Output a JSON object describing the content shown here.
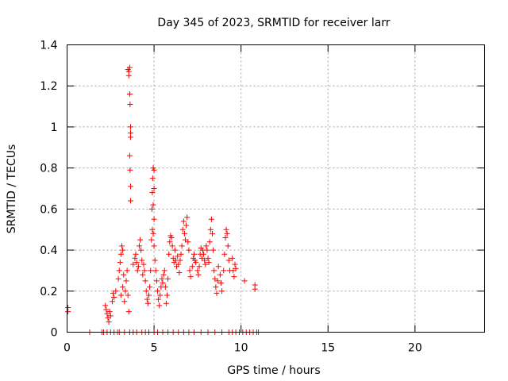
{
  "chart_data": {
    "type": "scatter",
    "title": "Day 345 of 2023, SRMTID for receiver larr",
    "xlabel": "GPS time / hours",
    "ylabel": "SRMTID / TECUs",
    "xlim": [
      0,
      24
    ],
    "ylim": [
      0,
      1.4
    ],
    "xticks": [
      0,
      5,
      10,
      15,
      20
    ],
    "xtick_labels": [
      "0",
      "5",
      "10",
      "15",
      "20"
    ],
    "yticks": [
      0,
      0.2,
      0.4,
      0.6,
      0.8,
      1.0,
      1.2,
      1.4
    ],
    "ytick_labels": [
      "0",
      "0.2",
      "0.4",
      "0.6",
      "0.8",
      "1",
      "1.2",
      "1.4"
    ],
    "grid": true,
    "marker": "+",
    "color": "#ff0000",
    "series": [
      {
        "name": "larr",
        "points": [
          [
            0.05,
            0.12
          ],
          [
            0.05,
            0.1
          ],
          [
            2.2,
            0.13
          ],
          [
            2.25,
            0.11
          ],
          [
            2.3,
            0.09
          ],
          [
            2.35,
            0.07
          ],
          [
            2.4,
            0.05
          ],
          [
            2.45,
            0.1
          ],
          [
            2.5,
            0.08
          ],
          [
            2.6,
            0.15
          ],
          [
            2.65,
            0.19
          ],
          [
            2.7,
            0.17
          ],
          [
            2.8,
            0.2
          ],
          [
            2.95,
            0.26
          ],
          [
            3.0,
            0.3
          ],
          [
            3.05,
            0.34
          ],
          [
            3.1,
            0.38
          ],
          [
            3.15,
            0.42
          ],
          [
            3.2,
            0.4
          ],
          [
            3.1,
            0.18
          ],
          [
            3.2,
            0.22
          ],
          [
            3.25,
            0.28
          ],
          [
            3.3,
            0.15
          ],
          [
            3.35,
            0.2
          ],
          [
            3.4,
            0.25
          ],
          [
            3.45,
            0.3
          ],
          [
            3.5,
            0.18
          ],
          [
            3.55,
            0.1
          ],
          [
            3.5,
            1.28
          ],
          [
            3.55,
            1.27
          ],
          [
            3.55,
            1.25
          ],
          [
            3.6,
            1.29
          ],
          [
            3.6,
            1.16
          ],
          [
            3.62,
            1.11
          ],
          [
            3.65,
            1.0
          ],
          [
            3.65,
            0.97
          ],
          [
            3.65,
            0.95
          ],
          [
            3.6,
            0.86
          ],
          [
            3.62,
            0.79
          ],
          [
            3.65,
            0.71
          ],
          [
            3.65,
            0.64
          ],
          [
            3.8,
            0.33
          ],
          [
            3.9,
            0.36
          ],
          [
            3.95,
            0.38
          ],
          [
            4.0,
            0.34
          ],
          [
            4.05,
            0.3
          ],
          [
            4.1,
            0.32
          ],
          [
            4.15,
            0.42
          ],
          [
            4.2,
            0.45
          ],
          [
            4.25,
            0.4
          ],
          [
            4.3,
            0.35
          ],
          [
            4.35,
            0.28
          ],
          [
            4.4,
            0.33
          ],
          [
            4.45,
            0.3
          ],
          [
            4.5,
            0.25
          ],
          [
            4.55,
            0.2
          ],
          [
            4.6,
            0.16
          ],
          [
            4.65,
            0.14
          ],
          [
            4.7,
            0.18
          ],
          [
            4.75,
            0.22
          ],
          [
            4.8,
            0.3
          ],
          [
            4.85,
            0.45
          ],
          [
            4.88,
            0.6
          ],
          [
            4.9,
            0.68
          ],
          [
            4.92,
            0.75
          ],
          [
            4.95,
            0.8
          ],
          [
            5.0,
            0.79
          ],
          [
            5.0,
            0.7
          ],
          [
            4.95,
            0.62
          ],
          [
            5.0,
            0.55
          ],
          [
            4.9,
            0.5
          ],
          [
            4.95,
            0.48
          ],
          [
            5.0,
            0.42
          ],
          [
            5.05,
            0.35
          ],
          [
            5.1,
            0.3
          ],
          [
            5.15,
            0.25
          ],
          [
            5.2,
            0.2
          ],
          [
            5.25,
            0.16
          ],
          [
            5.3,
            0.13
          ],
          [
            5.35,
            0.18
          ],
          [
            5.4,
            0.22
          ],
          [
            5.45,
            0.26
          ],
          [
            5.5,
            0.24
          ],
          [
            5.55,
            0.28
          ],
          [
            5.6,
            0.3
          ],
          [
            5.65,
            0.22
          ],
          [
            5.7,
            0.14
          ],
          [
            5.75,
            0.18
          ],
          [
            5.8,
            0.26
          ],
          [
            5.85,
            0.38
          ],
          [
            5.9,
            0.44
          ],
          [
            5.95,
            0.47
          ],
          [
            6.0,
            0.46
          ],
          [
            6.05,
            0.42
          ],
          [
            6.1,
            0.36
          ],
          [
            6.15,
            0.34
          ],
          [
            6.2,
            0.4
          ],
          [
            6.25,
            0.35
          ],
          [
            6.3,
            0.32
          ],
          [
            6.35,
            0.37
          ],
          [
            6.4,
            0.33
          ],
          [
            6.45,
            0.29
          ],
          [
            6.5,
            0.35
          ],
          [
            6.55,
            0.38
          ],
          [
            6.6,
            0.42
          ],
          [
            6.65,
            0.5
          ],
          [
            6.7,
            0.54
          ],
          [
            6.75,
            0.48
          ],
          [
            6.8,
            0.45
          ],
          [
            6.85,
            0.52
          ],
          [
            6.9,
            0.56
          ],
          [
            6.95,
            0.44
          ],
          [
            7.0,
            0.4
          ],
          [
            7.05,
            0.3
          ],
          [
            7.1,
            0.27
          ],
          [
            7.2,
            0.32
          ],
          [
            7.25,
            0.36
          ],
          [
            7.3,
            0.38
          ],
          [
            7.35,
            0.35
          ],
          [
            7.4,
            0.34
          ],
          [
            7.5,
            0.3
          ],
          [
            7.55,
            0.28
          ],
          [
            7.6,
            0.32
          ],
          [
            7.65,
            0.38
          ],
          [
            7.7,
            0.41
          ],
          [
            7.75,
            0.36
          ],
          [
            7.8,
            0.4
          ],
          [
            7.85,
            0.38
          ],
          [
            7.9,
            0.35
          ],
          [
            7.95,
            0.33
          ],
          [
            8.0,
            0.42
          ],
          [
            8.05,
            0.4
          ],
          [
            8.1,
            0.36
          ],
          [
            8.15,
            0.34
          ],
          [
            8.2,
            0.44
          ],
          [
            8.25,
            0.5
          ],
          [
            8.3,
            0.55
          ],
          [
            8.35,
            0.48
          ],
          [
            8.4,
            0.4
          ],
          [
            8.45,
            0.3
          ],
          [
            8.5,
            0.26
          ],
          [
            8.55,
            0.22
          ],
          [
            8.6,
            0.19
          ],
          [
            8.65,
            0.25
          ],
          [
            8.7,
            0.32
          ],
          [
            8.8,
            0.28
          ],
          [
            8.85,
            0.24
          ],
          [
            8.9,
            0.2
          ],
          [
            9.0,
            0.3
          ],
          [
            9.05,
            0.38
          ],
          [
            9.1,
            0.46
          ],
          [
            9.15,
            0.5
          ],
          [
            9.2,
            0.48
          ],
          [
            9.25,
            0.42
          ],
          [
            9.3,
            0.35
          ],
          [
            9.35,
            0.3
          ],
          [
            9.5,
            0.36
          ],
          [
            9.55,
            0.3
          ],
          [
            9.6,
            0.27
          ],
          [
            9.65,
            0.33
          ],
          [
            9.7,
            0.31
          ],
          [
            10.2,
            0.25
          ],
          [
            10.8,
            0.23
          ],
          [
            10.8,
            0.21
          ],
          [
            2.0,
            0
          ],
          [
            2.1,
            0
          ],
          [
            2.3,
            0
          ],
          [
            2.5,
            0
          ],
          [
            2.7,
            0
          ],
          [
            2.9,
            0
          ],
          [
            3.0,
            0
          ],
          [
            3.3,
            0
          ],
          [
            3.6,
            0
          ],
          [
            3.8,
            0
          ],
          [
            4.0,
            0
          ],
          [
            4.3,
            0
          ],
          [
            4.5,
            0
          ],
          [
            4.7,
            0
          ],
          [
            5.0,
            0
          ],
          [
            5.2,
            0
          ],
          [
            5.5,
            0
          ],
          [
            5.8,
            0
          ],
          [
            6.1,
            0
          ],
          [
            6.4,
            0
          ],
          [
            6.7,
            0
          ],
          [
            7.0,
            0
          ],
          [
            7.3,
            0
          ],
          [
            7.7,
            0
          ],
          [
            8.1,
            0
          ],
          [
            8.5,
            0
          ],
          [
            8.9,
            0
          ],
          [
            9.3,
            0
          ],
          [
            9.5,
            0
          ],
          [
            9.7,
            0
          ],
          [
            9.9,
            0
          ],
          [
            10.1,
            0
          ],
          [
            10.3,
            0
          ],
          [
            10.5,
            0
          ],
          [
            10.7,
            0
          ],
          [
            10.9,
            0
          ],
          [
            11.0,
            0
          ],
          [
            1.3,
            0
          ]
        ]
      }
    ]
  }
}
